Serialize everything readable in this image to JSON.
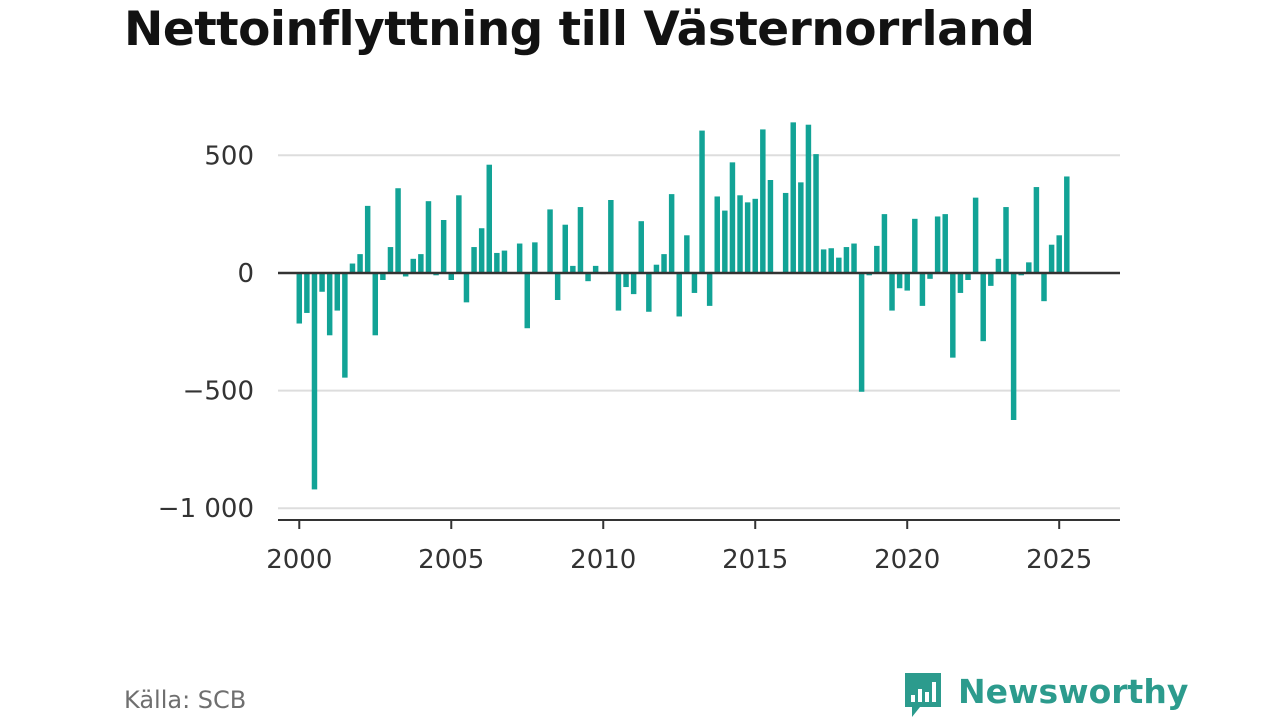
{
  "title": "Nettoinflyttning till Västernorrland",
  "source": "Källa: SCB",
  "brand": {
    "name": "Newsworthy",
    "icon": "newsworthy-logo-icon"
  },
  "colors": {
    "bar": "#12a396",
    "zero_line": "#333333",
    "grid": "#dddddd",
    "axis_text": "#333333",
    "brand": "#2c9b8d"
  },
  "chart_data": {
    "type": "bar",
    "title": "Nettoinflyttning till Västernorrland",
    "xlabel": "",
    "ylabel": "",
    "x_ticks": [
      2000,
      2005,
      2010,
      2015,
      2020,
      2025
    ],
    "y_ticks": [
      {
        "value": 500,
        "label": "500"
      },
      {
        "value": 0,
        "label": "0"
      },
      {
        "value": -500,
        "label": "−500"
      },
      {
        "value": -1000,
        "label": "−1 000"
      }
    ],
    "xlim": [
      1999.3,
      2027.0
    ],
    "ylim": [
      -1050,
      650
    ],
    "grid": true,
    "frequency": "quarterly",
    "x": [
      2000.0,
      2000.25,
      2000.5,
      2000.75,
      2001.0,
      2001.25,
      2001.5,
      2001.75,
      2002.0,
      2002.25,
      2002.5,
      2002.75,
      2003.0,
      2003.25,
      2003.5,
      2003.75,
      2004.0,
      2004.25,
      2004.5,
      2004.75,
      2005.0,
      2005.25,
      2005.5,
      2005.75,
      2006.0,
      2006.25,
      2006.5,
      2006.75,
      2007.0,
      2007.25,
      2007.5,
      2007.75,
      2008.0,
      2008.25,
      2008.5,
      2008.75,
      2009.0,
      2009.25,
      2009.5,
      2009.75,
      2010.0,
      2010.25,
      2010.5,
      2010.75,
      2011.0,
      2011.25,
      2011.5,
      2011.75,
      2012.0,
      2012.25,
      2012.5,
      2012.75,
      2013.0,
      2013.25,
      2013.5,
      2013.75,
      2014.0,
      2014.25,
      2014.5,
      2014.75,
      2015.0,
      2015.25,
      2015.5,
      2015.75,
      2016.0,
      2016.25,
      2016.5,
      2016.75,
      2017.0,
      2017.25,
      2017.5,
      2017.75,
      2018.0,
      2018.25,
      2018.5,
      2018.75,
      2019.0,
      2019.25,
      2019.5,
      2019.75,
      2020.0,
      2020.25,
      2020.5,
      2020.75,
      2021.0,
      2021.25,
      2021.5,
      2021.75,
      2022.0,
      2022.25,
      2022.5,
      2022.75,
      2023.0,
      2023.25,
      2023.5,
      2023.75,
      2024.0,
      2024.25,
      2024.5,
      2024.75,
      2025.0,
      2025.25
    ],
    "values": [
      -215,
      -170,
      -920,
      -80,
      -265,
      -160,
      -445,
      40,
      80,
      285,
      -265,
      -30,
      110,
      360,
      -15,
      60,
      80,
      305,
      -10,
      225,
      -30,
      330,
      -125,
      110,
      190,
      460,
      85,
      95,
      0,
      125,
      -235,
      130,
      0,
      270,
      -115,
      205,
      30,
      280,
      -35,
      30,
      -5,
      310,
      -160,
      -60,
      -90,
      220,
      -165,
      35,
      80,
      335,
      -185,
      160,
      -85,
      605,
      -140,
      325,
      265,
      470,
      330,
      300,
      315,
      610,
      395,
      0,
      340,
      640,
      385,
      630,
      505,
      100,
      105,
      65,
      110,
      125,
      -505,
      -10,
      115,
      250,
      -160,
      -65,
      -75,
      230,
      -140,
      -25,
      240,
      250,
      -360,
      -85,
      -30,
      320,
      -290,
      -55,
      60,
      280,
      -625,
      -10,
      45,
      365,
      -120,
      120,
      160,
      410
    ]
  }
}
